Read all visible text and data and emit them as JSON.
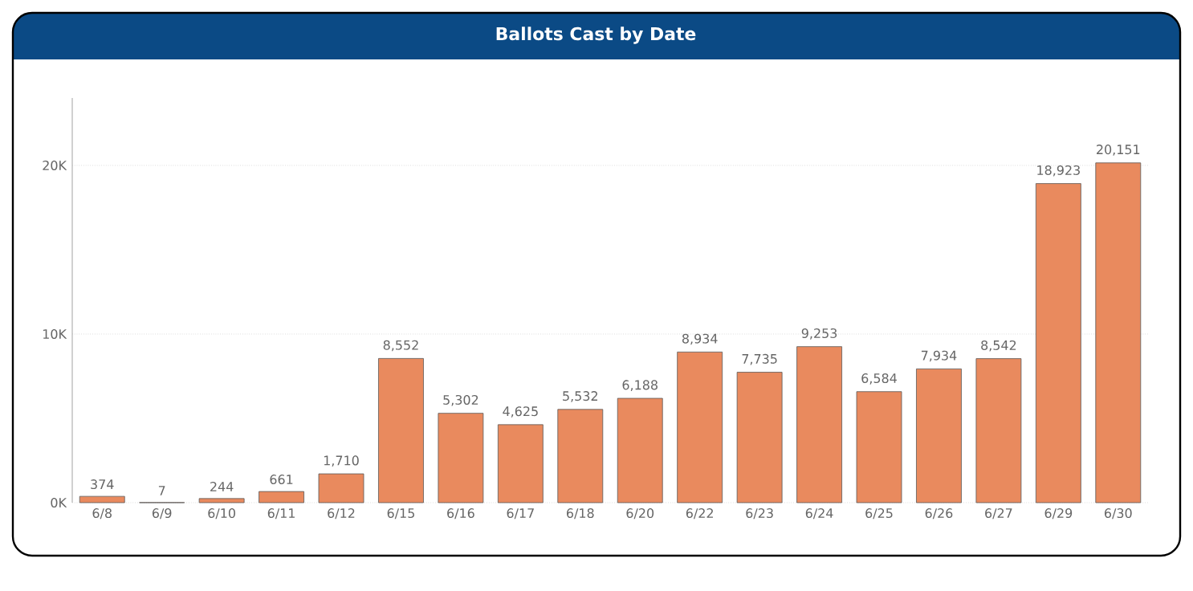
{
  "chart_data": {
    "type": "bar",
    "title": "Ballots Cast by Date",
    "categories": [
      "6/8",
      "6/9",
      "6/10",
      "6/11",
      "6/12",
      "6/15",
      "6/16",
      "6/17",
      "6/18",
      "6/20",
      "6/22",
      "6/23",
      "6/24",
      "6/25",
      "6/26",
      "6/27",
      "6/29",
      "6/30"
    ],
    "values": [
      374,
      7,
      244,
      661,
      1710,
      8552,
      5302,
      4625,
      5532,
      6188,
      8934,
      7735,
      9253,
      6584,
      7934,
      8542,
      18923,
      20151
    ],
    "value_labels": [
      "374",
      "7",
      "244",
      "661",
      "1,710",
      "8,552",
      "5,302",
      "4,625",
      "5,532",
      "6,188",
      "8,934",
      "7,735",
      "9,253",
      "6,584",
      "7,934",
      "8,542",
      "18,923",
      "20,151"
    ],
    "color": "#e98a5e",
    "ylim": [
      0,
      24000
    ],
    "yticks": [
      {
        "value": 0,
        "label": "0K"
      },
      {
        "value": 10000,
        "label": "10K"
      },
      {
        "value": 20000,
        "label": "20K"
      }
    ],
    "grid": "y"
  }
}
